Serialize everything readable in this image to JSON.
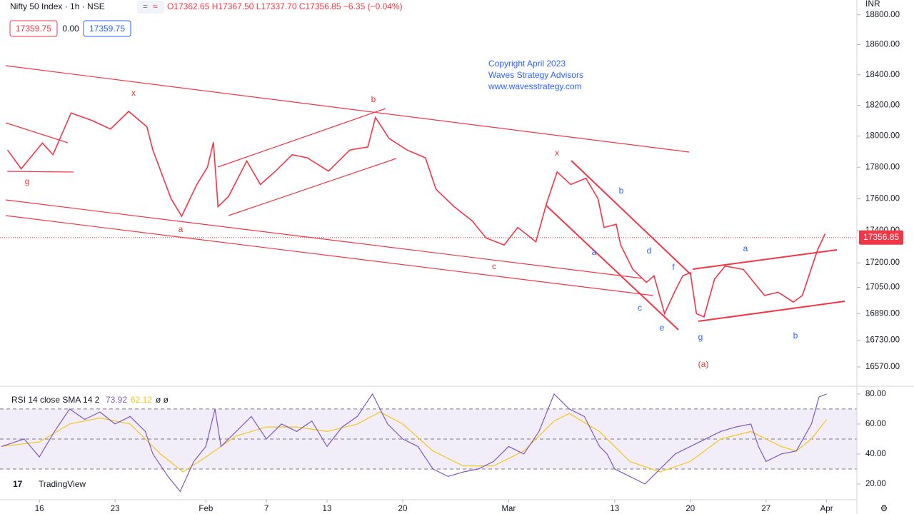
{
  "header": {
    "symbol": "Nifty 50 Index · 1h · NSE",
    "ohlc": "O17362.65 H17367.50 L17337.70 C17356.85 −6.35 (−0.04%)",
    "sell": "17359.75",
    "spread": "0.00",
    "buy": "17359.75"
  },
  "copyright": [
    "Copyright April 2023",
    "Waves Strategy Advisors",
    "www.wavesstrategy.com"
  ],
  "currency": "INR",
  "logo": "TradingView",
  "chart_data": [
    {
      "type": "line",
      "log_scale": true,
      "color": "#f23645",
      "x": [
        -2.1,
        -1.2,
        0.2,
        0.9,
        2.1,
        3.5,
        4.7,
        5.9,
        7.1,
        7.5,
        8.7,
        9.4,
        10.4,
        11.1,
        11.5,
        11.8,
        12.5,
        13.7,
        14.6,
        15.6,
        16.7,
        17.7,
        19.1,
        20.5,
        21.7,
        22.2,
        23.1,
        24.3,
        25.5,
        26.2,
        27.4,
        28.6,
        29.5,
        30.7,
        31.6,
        32.8,
        33.5,
        34.2,
        35.1,
        36.1,
        36.9,
        37.3,
        38.1,
        38.4,
        39.2,
        40.1,
        40.6,
        41.3,
        42.0,
        42.5,
        43.0,
        43.4,
        43.9,
        44.6,
        45.3,
        46.5,
        47.2,
        47.9,
        48.8,
        49.8,
        50.4,
        50.9,
        51.4,
        51.9
      ],
      "values": [
        17910,
        17790,
        17955,
        17880,
        18150,
        18100,
        18045,
        18160,
        18060,
        17910,
        17600,
        17490,
        17690,
        17800,
        17960,
        17550,
        17615,
        17840,
        17690,
        17775,
        17880,
        17860,
        17775,
        17910,
        17930,
        18120,
        17985,
        17910,
        17860,
        17660,
        17550,
        17460,
        17355,
        17310,
        17420,
        17330,
        17570,
        17770,
        17690,
        17730,
        17600,
        17420,
        17440,
        17310,
        17160,
        17080,
        17120,
        16890,
        17030,
        17120,
        17140,
        16890,
        16870,
        17100,
        17180,
        17160,
        17080,
        17000,
        17020,
        16960,
        17000,
        17140,
        17280,
        17380
      ],
      "last_price": 17356.85,
      "xlim": [
        -2.6,
        54
      ],
      "xticks": [
        {
          "value": 0,
          "label": "16"
        },
        {
          "value": 5,
          "label": "23"
        },
        {
          "value": 11,
          "label": "Feb"
        },
        {
          "value": 15,
          "label": "7"
        },
        {
          "value": 19,
          "label": "13"
        },
        {
          "value": 24,
          "label": "20"
        },
        {
          "value": 31,
          "label": "Mar"
        },
        {
          "value": 38,
          "label": "13"
        },
        {
          "value": 43,
          "label": "20"
        },
        {
          "value": 48,
          "label": "27"
        },
        {
          "value": 52,
          "label": "Apr"
        }
      ],
      "ylim": [
        16460,
        18900
      ],
      "yticks": [
        {
          "value": 18800,
          "label": "18800.00"
        },
        {
          "value": 18600,
          "label": "18600.00"
        },
        {
          "value": 18400,
          "label": "18400.00"
        },
        {
          "value": 18200,
          "label": "18200.00"
        },
        {
          "value": 18000,
          "label": "18000.00"
        },
        {
          "value": 17800,
          "label": "17800.00"
        },
        {
          "value": 17600,
          "label": "17600.00"
        },
        {
          "value": 17400,
          "label": "17400.00"
        },
        {
          "value": 17200,
          "label": "17200.00"
        },
        {
          "value": 17050,
          "label": "17050.00"
        },
        {
          "value": 16890,
          "label": "16890.00"
        },
        {
          "value": 16730,
          "label": "16730.00"
        },
        {
          "value": 16570,
          "label": "16570.00"
        }
      ],
      "annotations": [
        {
          "text": "g",
          "color": "#e53935"
        },
        {
          "text": "x",
          "color": "#e53935"
        },
        {
          "text": "a",
          "color": "#e53935"
        },
        {
          "text": "b",
          "color": "#e53935"
        },
        {
          "text": "c",
          "color": "#e53935"
        },
        {
          "text": "x",
          "color": "#e53935"
        },
        {
          "text": "b",
          "color": "#2962ff"
        },
        {
          "text": "a",
          "color": "#2962ff"
        },
        {
          "text": "d",
          "color": "#2962ff"
        },
        {
          "text": "f",
          "color": "#2962ff"
        },
        {
          "text": "c",
          "color": "#2962ff"
        },
        {
          "text": "e",
          "color": "#2962ff"
        },
        {
          "text": "g",
          "color": "#2962ff"
        },
        {
          "text": "(a)",
          "color": "#e53935"
        },
        {
          "text": "a",
          "color": "#2962ff"
        },
        {
          "text": "b",
          "color": "#2962ff"
        }
      ]
    },
    {
      "type": "line",
      "title": "RSI 14 close SMA 14 2",
      "extra": "ø ø",
      "xlim": [
        -2.6,
        54
      ],
      "ylim": [
        9.5,
        83.3
      ],
      "yticks": [
        {
          "value": 80,
          "label": "80.00"
        },
        {
          "value": 60,
          "label": "60.00"
        },
        {
          "value": 40,
          "label": "40.00"
        },
        {
          "value": 20,
          "label": "20.00"
        }
      ],
      "band": [
        30,
        70
      ],
      "levels": [
        30,
        50,
        70
      ],
      "series": [
        {
          "color": "#7e57c2",
          "last_value": 73.92,
          "x": [
            -2.5,
            -1,
            0,
            1,
            2,
            3,
            4,
            5,
            6,
            7,
            7.5,
            8.5,
            9.3,
            10.2,
            11,
            11.6,
            12,
            13,
            14,
            15,
            16,
            17,
            18,
            19,
            20,
            21,
            22,
            23,
            24,
            25,
            26,
            27,
            28,
            29,
            30,
            31,
            32,
            33,
            34,
            35,
            36,
            37,
            37.5,
            38,
            39,
            40,
            41,
            42,
            43,
            44,
            45,
            46,
            47,
            47.5,
            48,
            49,
            50,
            51,
            51.5,
            52
          ],
          "values": [
            45,
            50,
            38,
            55,
            70,
            63,
            68,
            60,
            65,
            55,
            40,
            25,
            15,
            35,
            45,
            70,
            45,
            55,
            65,
            50,
            60,
            55,
            62,
            45,
            58,
            65,
            80,
            60,
            50,
            45,
            30,
            25,
            28,
            30,
            35,
            45,
            40,
            55,
            80,
            70,
            65,
            45,
            40,
            30,
            25,
            20,
            30,
            40,
            45,
            50,
            55,
            58,
            60,
            45,
            35,
            40,
            42,
            60,
            78,
            80
          ]
        },
        {
          "color": "#f5c518",
          "last_value": 62.12,
          "x": [
            -2.5,
            0,
            2,
            4,
            6,
            8,
            9.5,
            11,
            13,
            15,
            17,
            19,
            21,
            22.5,
            24,
            26,
            28,
            30,
            32,
            34,
            35,
            37,
            39,
            41,
            43,
            45,
            47,
            49,
            50,
            51,
            52
          ],
          "values": [
            45,
            48,
            60,
            64,
            60,
            40,
            28,
            38,
            52,
            58,
            58,
            55,
            60,
            68,
            60,
            42,
            32,
            32,
            42,
            62,
            67,
            55,
            35,
            28,
            35,
            50,
            55,
            45,
            42,
            50,
            63
          ]
        }
      ]
    }
  ]
}
